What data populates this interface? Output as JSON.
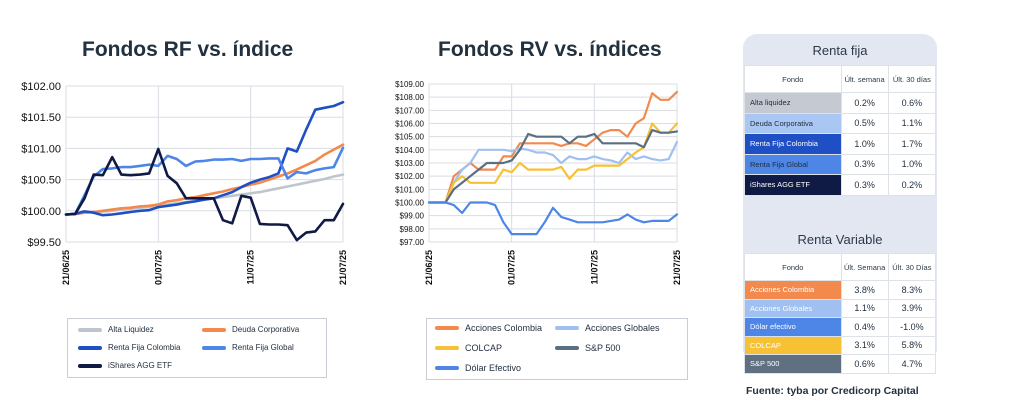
{
  "chart_data": [
    {
      "type": "line",
      "title": "Fondos RF vs. índice",
      "x": [
        "21/06/25",
        "22/06/25",
        "23/06/25",
        "24/06/25",
        "25/06/25",
        "26/06/25",
        "27/06/25",
        "28/06/25",
        "29/06/25",
        "30/06/25",
        "01/07/25",
        "02/07/25",
        "03/07/25",
        "04/07/25",
        "05/07/25",
        "06/07/25",
        "07/07/25",
        "08/07/25",
        "09/07/25",
        "10/07/25",
        "11/07/25",
        "12/07/25",
        "13/07/25",
        "14/07/25",
        "15/07/25",
        "16/07/25",
        "17/07/25",
        "18/07/25",
        "19/07/25",
        "20/07/25",
        "21/07/25"
      ],
      "x_tick_labels": [
        "21/06/25",
        "01/07/25",
        "11/07/25",
        "21/07/25"
      ],
      "y_tick_labels": [
        "$99.50",
        "$100.00",
        "$100.50",
        "$101.00",
        "$101.50",
        "$102.00"
      ],
      "ylim": [
        99.5,
        102.0
      ],
      "series": [
        {
          "name": "Alta Liquidez",
          "color": "#bfc5cf",
          "values": [
            99.94,
            99.95,
            99.97,
            99.98,
            99.99,
            100.0,
            100.02,
            100.03,
            100.05,
            100.06,
            100.08,
            100.1,
            100.12,
            100.14,
            100.16,
            100.18,
            100.2,
            100.22,
            100.24,
            100.26,
            100.28,
            100.3,
            100.33,
            100.36,
            100.39,
            100.42,
            100.45,
            100.48,
            100.51,
            100.55,
            100.58
          ]
        },
        {
          "name": "Deuda Corporativa",
          "color": "#f28a4d",
          "values": [
            99.94,
            99.95,
            99.97,
            99.98,
            100.0,
            100.02,
            100.04,
            100.05,
            100.07,
            100.08,
            100.1,
            100.15,
            100.17,
            100.2,
            100.22,
            100.25,
            100.28,
            100.31,
            100.35,
            100.38,
            100.42,
            100.45,
            100.5,
            100.55,
            100.6,
            100.66,
            100.73,
            100.8,
            100.9,
            100.98,
            101.06
          ]
        },
        {
          "name": "Renta Fija Colombia",
          "color": "#1f4fc4",
          "values": [
            99.94,
            99.95,
            99.99,
            99.97,
            99.93,
            99.94,
            99.96,
            99.98,
            100.0,
            100.01,
            100.06,
            100.08,
            100.1,
            100.13,
            100.15,
            100.18,
            100.2,
            100.25,
            100.3,
            100.38,
            100.45,
            100.5,
            100.54,
            100.6,
            101.0,
            100.95,
            101.3,
            101.62,
            101.65,
            101.68,
            101.74
          ]
        },
        {
          "name": "Renta Fija Global",
          "color": "#4d86e6",
          "values": [
            99.94,
            99.95,
            100.25,
            100.55,
            100.67,
            100.68,
            100.7,
            100.7,
            100.72,
            100.74,
            100.72,
            100.88,
            100.83,
            100.72,
            100.79,
            100.8,
            100.82,
            100.82,
            100.83,
            100.8,
            100.83,
            100.83,
            100.84,
            100.84,
            100.52,
            100.62,
            100.6,
            100.65,
            100.68,
            100.7,
            101.01
          ]
        },
        {
          "name": "iShares AGG ETF",
          "color": "#0f1a45",
          "values": [
            99.94,
            99.95,
            100.2,
            100.58,
            100.57,
            100.86,
            100.58,
            100.57,
            100.58,
            100.6,
            100.99,
            100.56,
            100.44,
            100.2,
            100.2,
            100.2,
            100.2,
            99.85,
            99.8,
            100.24,
            100.21,
            99.79,
            99.78,
            99.78,
            99.77,
            99.53,
            99.65,
            99.67,
            99.85,
            99.85,
            100.11
          ]
        }
      ]
    },
    {
      "type": "line",
      "title": "Fondos RV vs. índices",
      "x": [
        "21/06/25",
        "22/06/25",
        "23/06/25",
        "24/06/25",
        "25/06/25",
        "26/06/25",
        "27/06/25",
        "28/06/25",
        "29/06/25",
        "30/06/25",
        "01/07/25",
        "02/07/25",
        "03/07/25",
        "04/07/25",
        "05/07/25",
        "06/07/25",
        "07/07/25",
        "08/07/25",
        "09/07/25",
        "10/07/25",
        "11/07/25",
        "12/07/25",
        "13/07/25",
        "14/07/25",
        "15/07/25",
        "16/07/25",
        "17/07/25",
        "18/07/25",
        "19/07/25",
        "20/07/25",
        "21/07/25"
      ],
      "x_tick_labels": [
        "21/06/25",
        "01/07/25",
        "11/07/25",
        "21/07/25"
      ],
      "y_tick_labels": [
        "$97.00",
        "$98.00",
        "$99.00",
        "$100.00",
        "$101.00",
        "$102.00",
        "$103.00",
        "$104.00",
        "$105.00",
        "$106.00",
        "$107.00",
        "$108.00",
        "$109.00"
      ],
      "ylim": [
        97.0,
        109.0
      ],
      "series": [
        {
          "name": "Acciones Colombia",
          "color": "#f28a4d",
          "values": [
            100.0,
            100.0,
            100.0,
            102.0,
            102.5,
            103.0,
            102.5,
            102.5,
            102.5,
            103.5,
            103.5,
            104.5,
            104.5,
            104.5,
            104.5,
            104.5,
            104.3,
            104.5,
            104.5,
            104.3,
            104.8,
            105.3,
            105.5,
            105.5,
            105.0,
            106.0,
            106.4,
            108.3,
            107.8,
            107.8,
            108.4
          ]
        },
        {
          "name": "Acciones Globales",
          "color": "#9fc0f0",
          "values": [
            100.0,
            100.0,
            100.0,
            101.5,
            102.5,
            103.0,
            104.0,
            104.0,
            104.0,
            104.0,
            103.9,
            104.1,
            104.0,
            103.8,
            103.8,
            103.6,
            103.0,
            103.5,
            103.3,
            103.3,
            103.5,
            103.3,
            103.2,
            103.0,
            103.8,
            103.3,
            103.5,
            103.3,
            103.2,
            103.3,
            104.6
          ]
        },
        {
          "name": "COLCAP",
          "color": "#f7c136",
          "values": [
            100.0,
            100.0,
            100.0,
            101.5,
            102.0,
            101.5,
            101.5,
            101.5,
            101.5,
            102.5,
            102.3,
            103.0,
            102.5,
            102.5,
            102.5,
            102.5,
            102.7,
            101.8,
            102.5,
            102.5,
            102.8,
            102.8,
            102.8,
            102.8,
            103.3,
            103.8,
            104.2,
            106.0,
            105.3,
            105.3,
            106.0
          ]
        },
        {
          "name": "S&P 500",
          "color": "#5a6f80",
          "values": [
            100.0,
            100.0,
            100.0,
            101.0,
            101.5,
            102.0,
            102.5,
            103.0,
            103.0,
            103.0,
            103.2,
            104.0,
            105.2,
            105.0,
            105.0,
            105.0,
            105.0,
            104.5,
            105.0,
            105.0,
            105.2,
            104.5,
            104.5,
            104.5,
            104.5,
            104.5,
            104.2,
            105.5,
            105.3,
            105.3,
            105.4
          ]
        },
        {
          "name": "Dólar Efectivo",
          "color": "#4d86e6",
          "values": [
            100.0,
            100.0,
            100.0,
            99.8,
            99.2,
            100.0,
            100.0,
            100.0,
            99.8,
            98.5,
            97.6,
            97.6,
            97.6,
            97.6,
            98.5,
            99.6,
            98.9,
            98.7,
            98.5,
            98.5,
            98.5,
            98.5,
            98.6,
            98.7,
            99.1,
            98.7,
            98.5,
            98.6,
            98.6,
            98.6,
            99.1
          ]
        }
      ]
    }
  ],
  "legends": {
    "rf": [
      "Alta Liquidez",
      "Deuda Corporativa",
      "Renta Fija Colombia",
      "Renta Fija Global",
      "iShares AGG ETF"
    ],
    "rv": [
      "Acciones Colombia",
      "Acciones Globales",
      "COLCAP",
      "S&P 500",
      "Dólar Efectivo"
    ]
  },
  "renta_fija": {
    "title": "Renta fija",
    "headers": [
      "Fondo",
      "Últ. semana",
      "Últ. 30 días"
    ],
    "rows": [
      {
        "name": "Alta liquidez",
        "week": "0.2%",
        "month": "0.6%",
        "bg": "#c4c9d2",
        "fg": "#1f2d3d"
      },
      {
        "name": "Deuda Corporativa",
        "week": "0.5%",
        "month": "1.1%",
        "bg": "#aac6f2",
        "fg": "#1f2d3d"
      },
      {
        "name": "Renta Fija Colombia",
        "week": "1.0%",
        "month": "1.7%",
        "bg": "#1f4fc4",
        "fg": "#ffffff"
      },
      {
        "name": "Renta Fija Global",
        "week": "0.3%",
        "month": "1.0%",
        "bg": "#4d86e6",
        "fg": "#1f2d3d"
      },
      {
        "name": "iShares AGG ETF",
        "week": "0.3%",
        "month": "0.2%",
        "bg": "#0f1a45",
        "fg": "#ffffff"
      }
    ]
  },
  "renta_variable": {
    "title": "Renta Variable",
    "headers": [
      "Fondo",
      "Últ. Semana",
      "Últ. 30 Días"
    ],
    "rows": [
      {
        "name": "Acciones Colombia",
        "week": "3.8%",
        "month": "8.3%",
        "bg": "#f28a4d",
        "fg": "#ffffff"
      },
      {
        "name": "Acciones Globales",
        "week": "1.1%",
        "month": "3.9%",
        "bg": "#9fc0f0",
        "fg": "#ffffff"
      },
      {
        "name": "Dólar efectivo",
        "week": "0.4%",
        "month": "-1.0%",
        "bg": "#4d86e6",
        "fg": "#ffffff"
      },
      {
        "name": "COLCAP",
        "week": "3.1%",
        "month": "5.8%",
        "bg": "#f7c136",
        "fg": "#ffffff"
      },
      {
        "name": "S&P 500",
        "week": "0.6%",
        "month": "4.7%",
        "bg": "#5f7080",
        "fg": "#ffffff"
      }
    ]
  },
  "source": "Fuente: tyba por Credicorp Capital"
}
